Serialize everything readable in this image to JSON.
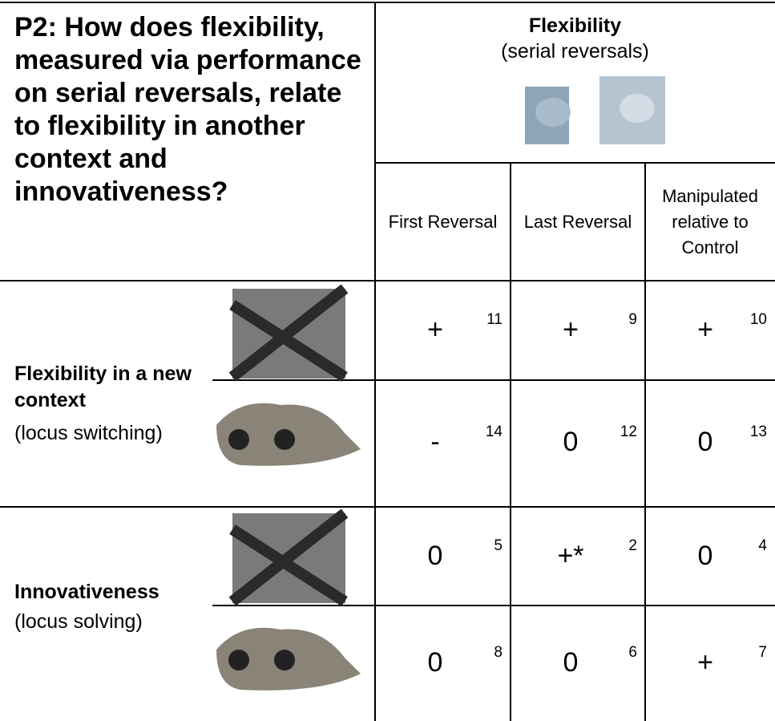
{
  "question": "P2: How does flexibility, measured via performance on serial reversals, relate to flexibility in another context and innovativeness?",
  "header": {
    "title": "Flexibility",
    "subtitle": "(serial reversals)"
  },
  "columns": [
    "First Reversal",
    "Last Reversal",
    "Manipulated relative to Control"
  ],
  "rows": [
    {
      "label": "Flexibility in a new context",
      "sublabel": "(locus switching)",
      "subrows": [
        [
          {
            "sign": "+",
            "ref": 11
          },
          {
            "sign": "+",
            "ref": 9
          },
          {
            "sign": "+",
            "ref": 10
          }
        ],
        [
          {
            "sign": "-",
            "ref": 14
          },
          {
            "sign": "0",
            "ref": 12
          },
          {
            "sign": "0",
            "ref": 13
          }
        ]
      ]
    },
    {
      "label": "Innovativeness",
      "sublabel": "(locus solving)",
      "subrows": [
        [
          {
            "sign": "0",
            "ref": 5
          },
          {
            "sign": "+*",
            "ref": 2
          },
          {
            "sign": "0",
            "ref": 4
          }
        ],
        [
          {
            "sign": "0",
            "ref": 8
          },
          {
            "sign": "0",
            "ref": 6
          },
          {
            "sign": "+",
            "ref": 7
          }
        ]
      ]
    }
  ]
}
